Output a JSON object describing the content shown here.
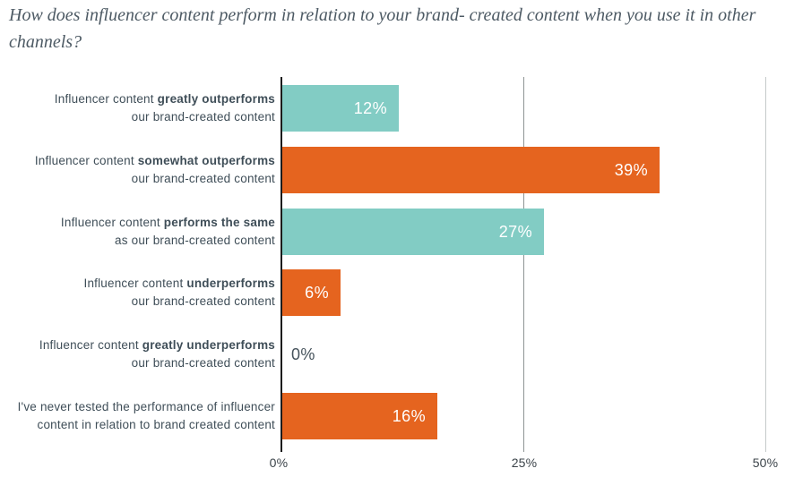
{
  "title": "How does influencer content perform in relation to your brand- created content when you use it in other channels?",
  "colors": {
    "teal": "#82CCC4",
    "orange": "#E5641F",
    "axis": "#1C1C1C",
    "grid_25": "#8E9494",
    "grid_50": "#C5CACA",
    "label_text": "#3F4E58",
    "value_inside": "#FFFFFF",
    "value_outside": "#45525B",
    "tick_text": "#3B4349",
    "title_text": "#4D5A64"
  },
  "chart_data": {
    "type": "bar",
    "orientation": "horizontal",
    "title": "How does influencer content perform in relation to your brand- created content when you use it in other channels?",
    "x_axis": {
      "ticks": [
        "0%",
        "25%",
        "50%"
      ],
      "range": [
        0,
        50
      ],
      "unit": "%",
      "grid": true
    },
    "legend": "none",
    "bars": [
      {
        "label_pre": "Influencer content",
        "label_bold": "greatly outperforms",
        "label_line2": "our brand-created content",
        "value": 12,
        "value_label": "12%",
        "color": "teal"
      },
      {
        "label_pre": "Influencer content",
        "label_bold": "somewhat outperforms",
        "label_line2": "our brand-created content",
        "value": 39,
        "value_label": "39%",
        "color": "orange"
      },
      {
        "label_pre": "Influencer content",
        "label_bold": "performs the same",
        "label_line2": "as our brand-created content",
        "value": 27,
        "value_label": "27%",
        "color": "teal"
      },
      {
        "label_pre": "Influencer content",
        "label_bold": "underperforms",
        "label_line2": "our brand-created content",
        "value": 6,
        "value_label": "6%",
        "color": "orange"
      },
      {
        "label_pre": "Influencer content",
        "label_bold": "greatly underperforms",
        "label_line2": "our brand-created content",
        "value": 0,
        "value_label": "0%",
        "color": "teal"
      },
      {
        "label_pre": "I've never tested the performance of influencer",
        "label_bold": "",
        "label_line2": "content in relation to brand created content",
        "value": 16,
        "value_label": "16%",
        "color": "orange"
      }
    ]
  }
}
